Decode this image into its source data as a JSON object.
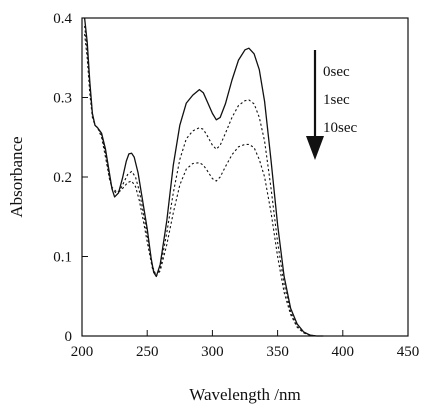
{
  "chart_data": {
    "type": "line",
    "xlabel": "Wavelength /nm",
    "ylabel": "Absorbance",
    "xlim": [
      200,
      450
    ],
    "ylim": [
      0,
      0.4
    ],
    "xticks": [
      "200",
      "250",
      "300",
      "350",
      "400",
      "450"
    ],
    "yticks": [
      "0",
      "0.1",
      "0.2",
      "0.3",
      "0.4"
    ],
    "grid": false,
    "legend_position": "top-right",
    "legend_arrow": "down",
    "series": [
      {
        "name": "0sec",
        "style": "solid",
        "points": [
          [
            202,
            0.4
          ],
          [
            204,
            0.37
          ],
          [
            206,
            0.32
          ],
          [
            208,
            0.28
          ],
          [
            210,
            0.265
          ],
          [
            212,
            0.262
          ],
          [
            215,
            0.255
          ],
          [
            218,
            0.235
          ],
          [
            221,
            0.205
          ],
          [
            223,
            0.185
          ],
          [
            225,
            0.175
          ],
          [
            228,
            0.18
          ],
          [
            231,
            0.198
          ],
          [
            234,
            0.22
          ],
          [
            236,
            0.229
          ],
          [
            238,
            0.23
          ],
          [
            240,
            0.225
          ],
          [
            243,
            0.205
          ],
          [
            246,
            0.175
          ],
          [
            250,
            0.135
          ],
          [
            253,
            0.098
          ],
          [
            255,
            0.08
          ],
          [
            257,
            0.075
          ],
          [
            260,
            0.09
          ],
          [
            265,
            0.145
          ],
          [
            270,
            0.215
          ],
          [
            275,
            0.265
          ],
          [
            280,
            0.293
          ],
          [
            285,
            0.303
          ],
          [
            290,
            0.31
          ],
          [
            293,
            0.306
          ],
          [
            296,
            0.295
          ],
          [
            300,
            0.28
          ],
          [
            303,
            0.272
          ],
          [
            306,
            0.275
          ],
          [
            310,
            0.292
          ],
          [
            315,
            0.322
          ],
          [
            320,
            0.347
          ],
          [
            325,
            0.36
          ],
          [
            328,
            0.362
          ],
          [
            332,
            0.355
          ],
          [
            336,
            0.335
          ],
          [
            340,
            0.295
          ],
          [
            345,
            0.22
          ],
          [
            350,
            0.14
          ],
          [
            355,
            0.075
          ],
          [
            360,
            0.035
          ],
          [
            365,
            0.015
          ],
          [
            370,
            0.005
          ],
          [
            375,
            0.001
          ],
          [
            380,
            0.0
          ],
          [
            385,
            0.0
          ]
        ]
      },
      {
        "name": "1sec",
        "style": "dotted",
        "points": [
          [
            202,
            0.39
          ],
          [
            204,
            0.36
          ],
          [
            206,
            0.315
          ],
          [
            208,
            0.278
          ],
          [
            210,
            0.265
          ],
          [
            212,
            0.262
          ],
          [
            215,
            0.253
          ],
          [
            218,
            0.23
          ],
          [
            221,
            0.2
          ],
          [
            223,
            0.185
          ],
          [
            226,
            0.18
          ],
          [
            229,
            0.183
          ],
          [
            232,
            0.193
          ],
          [
            235,
            0.203
          ],
          [
            238,
            0.207
          ],
          [
            241,
            0.2
          ],
          [
            244,
            0.182
          ],
          [
            247,
            0.155
          ],
          [
            251,
            0.118
          ],
          [
            254,
            0.088
          ],
          [
            257,
            0.075
          ],
          [
            260,
            0.085
          ],
          [
            265,
            0.13
          ],
          [
            270,
            0.18
          ],
          [
            275,
            0.222
          ],
          [
            280,
            0.248
          ],
          [
            285,
            0.258
          ],
          [
            290,
            0.262
          ],
          [
            293,
            0.26
          ],
          [
            296,
            0.252
          ],
          [
            300,
            0.24
          ],
          [
            303,
            0.235
          ],
          [
            306,
            0.24
          ],
          [
            310,
            0.255
          ],
          [
            315,
            0.275
          ],
          [
            320,
            0.29
          ],
          [
            325,
            0.296
          ],
          [
            328,
            0.297
          ],
          [
            332,
            0.292
          ],
          [
            336,
            0.275
          ],
          [
            340,
            0.245
          ],
          [
            345,
            0.185
          ],
          [
            350,
            0.118
          ],
          [
            355,
            0.065
          ],
          [
            360,
            0.03
          ],
          [
            365,
            0.012
          ],
          [
            370,
            0.004
          ],
          [
            375,
            0.001
          ],
          [
            380,
            0.0
          ],
          [
            385,
            0.0
          ]
        ]
      },
      {
        "name": "10sec",
        "style": "dotted",
        "points": [
          [
            202,
            0.38
          ],
          [
            204,
            0.35
          ],
          [
            206,
            0.305
          ],
          [
            208,
            0.275
          ],
          [
            210,
            0.265
          ],
          [
            212,
            0.262
          ],
          [
            215,
            0.25
          ],
          [
            218,
            0.225
          ],
          [
            221,
            0.198
          ],
          [
            223,
            0.187
          ],
          [
            226,
            0.182
          ],
          [
            229,
            0.182
          ],
          [
            232,
            0.187
          ],
          [
            235,
            0.193
          ],
          [
            238,
            0.195
          ],
          [
            241,
            0.188
          ],
          [
            244,
            0.17
          ],
          [
            247,
            0.145
          ],
          [
            251,
            0.11
          ],
          [
            254,
            0.085
          ],
          [
            257,
            0.076
          ],
          [
            260,
            0.082
          ],
          [
            265,
            0.115
          ],
          [
            270,
            0.155
          ],
          [
            275,
            0.19
          ],
          [
            280,
            0.21
          ],
          [
            285,
            0.217
          ],
          [
            290,
            0.218
          ],
          [
            293,
            0.215
          ],
          [
            296,
            0.208
          ],
          [
            300,
            0.198
          ],
          [
            303,
            0.195
          ],
          [
            306,
            0.2
          ],
          [
            310,
            0.213
          ],
          [
            315,
            0.228
          ],
          [
            320,
            0.238
          ],
          [
            325,
            0.241
          ],
          [
            328,
            0.241
          ],
          [
            332,
            0.237
          ],
          [
            336,
            0.222
          ],
          [
            340,
            0.2
          ],
          [
            345,
            0.155
          ],
          [
            350,
            0.1
          ],
          [
            355,
            0.055
          ],
          [
            360,
            0.027
          ],
          [
            365,
            0.011
          ],
          [
            370,
            0.004
          ],
          [
            375,
            0.001
          ],
          [
            380,
            0.0
          ],
          [
            385,
            0.0
          ]
        ]
      }
    ]
  }
}
